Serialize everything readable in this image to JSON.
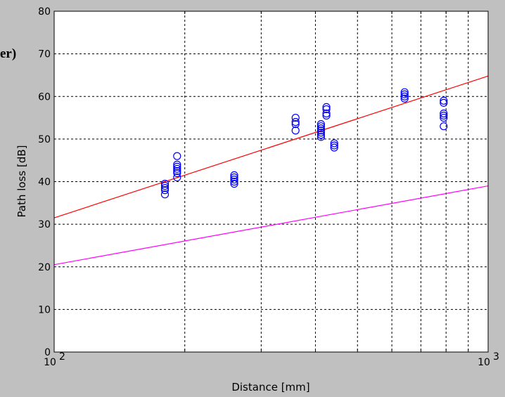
{
  "chart_data": {
    "type": "scatter",
    "clipped_title_fragment": "er)",
    "xlabel": "Distance [mm]",
    "ylabel": "Path loss [dB]",
    "xscale": "log",
    "xlim": [
      100,
      1000
    ],
    "ylim": [
      0,
      80
    ],
    "grid": true,
    "x_ticks": [
      {
        "value": 100,
        "base": "10",
        "exp": "2"
      },
      {
        "value": 1000,
        "base": "10",
        "exp": "3"
      }
    ],
    "x_minor_gridlines": [
      200,
      300,
      400,
      500,
      600,
      700,
      800,
      900
    ],
    "y_ticks": [
      0,
      10,
      20,
      30,
      40,
      50,
      60,
      70,
      80
    ],
    "series": [
      {
        "kind": "points",
        "marker": "circle-open",
        "color": "#0000ff",
        "points": [
          [
            180,
            37
          ],
          [
            180,
            38
          ],
          [
            180,
            38.5
          ],
          [
            180,
            39
          ],
          [
            180,
            39.5
          ],
          [
            192,
            41
          ],
          [
            192,
            42
          ],
          [
            192,
            42.5
          ],
          [
            192,
            43
          ],
          [
            192,
            43.5
          ],
          [
            192,
            44
          ],
          [
            192,
            46
          ],
          [
            260,
            39.5
          ],
          [
            260,
            40
          ],
          [
            260,
            40.5
          ],
          [
            260,
            41
          ],
          [
            260,
            41.5
          ],
          [
            360,
            52
          ],
          [
            360,
            53.5
          ],
          [
            360,
            54
          ],
          [
            360,
            55
          ],
          [
            412,
            50.5
          ],
          [
            412,
            51
          ],
          [
            412,
            51.5
          ],
          [
            412,
            52
          ],
          [
            412,
            52.5
          ],
          [
            412,
            53
          ],
          [
            412,
            53.5
          ],
          [
            424,
            55.5
          ],
          [
            424,
            56
          ],
          [
            424,
            57
          ],
          [
            424,
            57.5
          ],
          [
            442,
            48
          ],
          [
            442,
            48.5
          ],
          [
            442,
            49
          ],
          [
            642,
            59.5
          ],
          [
            642,
            60
          ],
          [
            642,
            60.5
          ],
          [
            642,
            61
          ],
          [
            790,
            53
          ],
          [
            790,
            55
          ],
          [
            790,
            55.5
          ],
          [
            790,
            56
          ],
          [
            790,
            58.5
          ],
          [
            790,
            59
          ]
        ]
      },
      {
        "kind": "line",
        "color": "#ff0000",
        "x": [
          100,
          1000
        ],
        "y": [
          31.5,
          64.8
        ]
      },
      {
        "kind": "line",
        "color": "#ff00ff",
        "x": [
          100,
          1000
        ],
        "y": [
          20.5,
          39
        ]
      }
    ]
  }
}
